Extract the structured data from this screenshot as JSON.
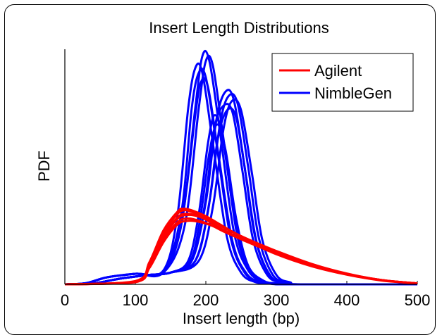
{
  "chart_data": {
    "type": "line",
    "title": "Insert Length Distributions",
    "xlabel": "Insert length (bp)",
    "ylabel": "PDF",
    "xlim": [
      0,
      500
    ],
    "ylim": [
      0,
      1
    ],
    "x_ticks": [
      0,
      100,
      200,
      300,
      400,
      500
    ],
    "y_ticks": [],
    "grid": false,
    "legend_position": "top-right",
    "series": [
      {
        "name": "Agilent",
        "color": "#ff0000",
        "curves": [
          {
            "x": [
              0,
              100,
              120,
              140,
              160,
              170,
              180,
              200,
              220,
              250,
              300,
              350,
              400,
              450,
              500
            ],
            "y": [
              0,
              0.012,
              0.09,
              0.22,
              0.3,
              0.315,
              0.308,
              0.285,
              0.25,
              0.205,
              0.14,
              0.085,
              0.045,
              0.018,
              0.004
            ]
          },
          {
            "x": [
              0,
              100,
              120,
              140,
              160,
              175,
              190,
              210,
              230,
              260,
              300,
              350,
              400,
              450,
              500
            ],
            "y": [
              0,
              0.01,
              0.08,
              0.2,
              0.28,
              0.295,
              0.288,
              0.265,
              0.235,
              0.19,
              0.135,
              0.08,
              0.043,
              0.017,
              0.004
            ]
          },
          {
            "x": [
              0,
              100,
              120,
              140,
              160,
              170,
              185,
              200,
              220,
              250,
              300,
              350,
              400,
              450,
              500
            ],
            "y": [
              0,
              0.012,
              0.085,
              0.21,
              0.285,
              0.3,
              0.295,
              0.275,
              0.24,
              0.195,
              0.135,
              0.082,
              0.044,
              0.018,
              0.004
            ]
          },
          {
            "x": [
              0,
              100,
              120,
              140,
              160,
              172,
              185,
              205,
              225,
              255,
              300,
              350,
              400,
              450,
              500
            ],
            "y": [
              0,
              0.01,
              0.075,
              0.19,
              0.265,
              0.28,
              0.275,
              0.255,
              0.225,
              0.185,
              0.13,
              0.078,
              0.042,
              0.017,
              0.004
            ]
          },
          {
            "x": [
              0,
              100,
              120,
              140,
              160,
              168,
              180,
              200,
              220,
              250,
              300,
              350,
              400,
              450,
              500
            ],
            "y": [
              0,
              0.014,
              0.095,
              0.23,
              0.31,
              0.322,
              0.315,
              0.29,
              0.255,
              0.205,
              0.142,
              0.087,
              0.046,
              0.018,
              0.004
            ]
          },
          {
            "x": [
              0,
              100,
              120,
              140,
              160,
              175,
              190,
              210,
              230,
              260,
              300,
              350,
              400,
              450,
              500
            ],
            "y": [
              0,
              0.009,
              0.07,
              0.18,
              0.255,
              0.27,
              0.266,
              0.248,
              0.22,
              0.182,
              0.128,
              0.077,
              0.041,
              0.016,
              0.004
            ]
          }
        ]
      },
      {
        "name": "NimbleGen",
        "color": "#0000ff",
        "curves": [
          {
            "x": [
              0,
              30,
              60,
              100,
              140,
              160,
              175,
              185,
              195,
              210,
              230,
              250,
              270,
              290,
              320,
              500
            ],
            "y": [
              0,
              0.005,
              0.03,
              0.045,
              0.06,
              0.3,
              0.75,
              0.92,
              0.9,
              0.6,
              0.2,
              0.05,
              0.01,
              0.003,
              0,
              0
            ]
          },
          {
            "x": [
              0,
              30,
              60,
              100,
              140,
              165,
              180,
              190,
              200,
              215,
              235,
              255,
              275,
              295,
              320,
              500
            ],
            "y": [
              0,
              0.005,
              0.03,
              0.045,
              0.055,
              0.3,
              0.75,
              0.9,
              0.88,
              0.6,
              0.2,
              0.05,
              0.01,
              0.003,
              0,
              0
            ]
          },
          {
            "x": [
              0,
              30,
              60,
              100,
              140,
              165,
              185,
              195,
              205,
              220,
              240,
              260,
              280,
              300,
              320,
              500
            ],
            "y": [
              0,
              0.005,
              0.03,
              0.045,
              0.055,
              0.25,
              0.75,
              0.97,
              0.95,
              0.65,
              0.22,
              0.06,
              0.012,
              0.003,
              0,
              0
            ]
          },
          {
            "x": [
              0,
              30,
              60,
              100,
              140,
              170,
              190,
              200,
              210,
              225,
              245,
              265,
              285,
              305,
              320,
              500
            ],
            "y": [
              0,
              0.005,
              0.03,
              0.045,
              0.05,
              0.25,
              0.75,
              0.95,
              0.93,
              0.62,
              0.2,
              0.05,
              0.01,
              0.002,
              0,
              0
            ]
          },
          {
            "x": [
              0,
              30,
              60,
              100,
              140,
              165,
              185,
              193,
              203,
              218,
              238,
              258,
              278,
              298,
              320,
              500
            ],
            "y": [
              0,
              0.005,
              0.03,
              0.045,
              0.055,
              0.25,
              0.72,
              0.86,
              0.84,
              0.55,
              0.18,
              0.045,
              0.01,
              0.002,
              0,
              0
            ]
          },
          {
            "x": [
              0,
              40,
              80,
              120,
              150,
              180,
              200,
              215,
              228,
              240,
              255,
              270,
              290,
              310,
              330,
              500
            ],
            "y": [
              0,
              0.004,
              0.025,
              0.04,
              0.05,
              0.1,
              0.35,
              0.7,
              0.82,
              0.78,
              0.5,
              0.2,
              0.04,
              0.008,
              0,
              0
            ]
          },
          {
            "x": [
              0,
              40,
              80,
              120,
              150,
              185,
              205,
              220,
              232,
              245,
              260,
              275,
              295,
              315,
              330,
              500
            ],
            "y": [
              0,
              0.004,
              0.025,
              0.04,
              0.05,
              0.1,
              0.35,
              0.68,
              0.8,
              0.77,
              0.5,
              0.2,
              0.04,
              0.008,
              0,
              0
            ]
          },
          {
            "x": [
              0,
              40,
              80,
              120,
              150,
              190,
              210,
              225,
              237,
              250,
              265,
              280,
              300,
              320,
              335,
              500
            ],
            "y": [
              0,
              0.004,
              0.025,
              0.04,
              0.05,
              0.1,
              0.33,
              0.66,
              0.78,
              0.74,
              0.48,
              0.19,
              0.04,
              0.008,
              0,
              0
            ]
          },
          {
            "x": [
              0,
              40,
              80,
              120,
              150,
              180,
              198,
              212,
              225,
              238,
              252,
              267,
              287,
              307,
              325,
              500
            ],
            "y": [
              0,
              0.004,
              0.025,
              0.04,
              0.05,
              0.1,
              0.33,
              0.66,
              0.76,
              0.73,
              0.48,
              0.19,
              0.04,
              0.008,
              0,
              0
            ]
          },
          {
            "x": [
              0,
              40,
              80,
              120,
              150,
              185,
              203,
              217,
              230,
              243,
              257,
              272,
              292,
              312,
              330,
              500
            ],
            "y": [
              0,
              0.004,
              0.025,
              0.04,
              0.05,
              0.1,
              0.31,
              0.62,
              0.74,
              0.71,
              0.46,
              0.18,
              0.035,
              0.007,
              0,
              0
            ]
          },
          {
            "x": [
              0,
              40,
              80,
              120,
              150,
              175,
              190,
              203,
              213,
              225,
              240,
              258,
              280,
              300,
              320,
              500
            ],
            "y": [
              0,
              0.004,
              0.025,
              0.04,
              0.05,
              0.1,
              0.3,
              0.6,
              0.72,
              0.6,
              0.3,
              0.08,
              0.015,
              0.004,
              0,
              0
            ]
          },
          {
            "x": [
              0,
              40,
              80,
              120,
              150,
              178,
              192,
              205,
              216,
              228,
              243,
              260,
              282,
              302,
              320,
              500
            ],
            "y": [
              0,
              0.004,
              0.025,
              0.04,
              0.05,
              0.1,
              0.28,
              0.56,
              0.68,
              0.57,
              0.28,
              0.08,
              0.015,
              0.004,
              0,
              0
            ]
          }
        ]
      }
    ]
  }
}
